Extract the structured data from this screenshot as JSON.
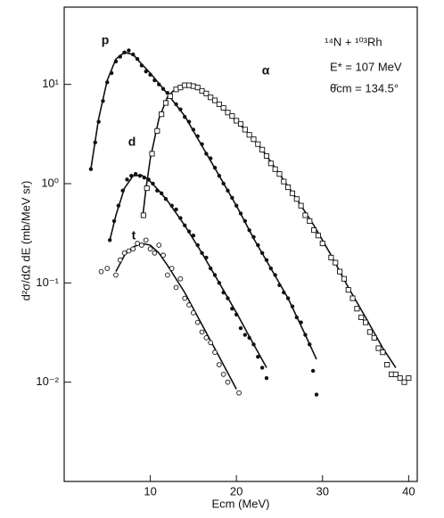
{
  "chart_data": {
    "type": "scatter",
    "annotations": [
      "¹⁴N + ¹⁰³Rh",
      "E* = 107 MeV",
      "θ̄cm = 134.5°"
    ],
    "x_label": "Ecm (MeV)",
    "y_label": "d²σ/dΩ dE (mb/MeV sr)",
    "log_y": true,
    "xlim": [
      0,
      41
    ],
    "ylim": [
      0.001,
      60
    ],
    "xticks": [
      10,
      20,
      30,
      40
    ],
    "yticks": [
      {
        "value": 10,
        "label": "10¹"
      },
      {
        "value": 1,
        "label": "10⁰"
      },
      {
        "value": 0.1,
        "label": "10⁻¹"
      },
      {
        "value": 0.01,
        "label": "10⁻²"
      }
    ],
    "series": [
      {
        "name": "p",
        "color": "#111111",
        "marker": "filled-circle",
        "x": [
          3.1,
          3.6,
          4.0,
          4.5,
          5.0,
          5.5,
          6.0,
          6.5,
          7.0,
          7.5,
          8.0,
          8.5,
          9.0,
          9.5,
          10,
          10.5,
          11,
          11.5,
          12,
          13,
          13.5,
          14,
          14.5,
          15,
          15.5,
          16,
          16.5,
          17,
          17.5,
          18,
          18.5,
          19,
          19.5,
          20,
          20.5,
          21,
          21.5,
          22,
          22.5,
          23,
          23.5,
          24,
          24.5,
          25,
          25.5,
          26,
          26.5,
          27,
          27.5,
          28,
          28.5,
          28.9,
          29.3
        ],
        "values": [
          1.4,
          2.6,
          4.2,
          6.8,
          10.5,
          13,
          17,
          19,
          21,
          22,
          20,
          18,
          15.5,
          13.5,
          12.5,
          11,
          10,
          9,
          8.2,
          6.3,
          5.6,
          4.7,
          4.2,
          3.5,
          3.0,
          2.5,
          2.0,
          1.8,
          1.45,
          1.2,
          1.0,
          0.85,
          0.72,
          0.6,
          0.5,
          0.42,
          0.34,
          0.29,
          0.24,
          0.2,
          0.17,
          0.14,
          0.12,
          0.095,
          0.08,
          0.07,
          0.058,
          0.045,
          0.04,
          0.03,
          0.024,
          0.013,
          0.0075
        ],
        "curve": {
          "x": [
            3.1,
            4,
            5,
            6,
            7,
            8,
            9,
            10,
            12,
            14,
            16,
            18,
            20,
            22,
            24,
            26,
            28,
            29.3
          ],
          "values": [
            1.4,
            4.5,
            11,
            18,
            21,
            20,
            16,
            13,
            8,
            4.8,
            2.4,
            1.2,
            0.6,
            0.28,
            0.14,
            0.07,
            0.03,
            0.017
          ]
        }
      },
      {
        "name": "α",
        "color": "#111111",
        "marker": "open-square",
        "x": [
          9.2,
          9.6,
          10.2,
          10.8,
          11.3,
          11.8,
          12.3,
          13,
          13.5,
          14,
          14.5,
          15,
          15.5,
          16,
          16.5,
          17,
          17.5,
          18,
          18.5,
          19,
          19.5,
          20,
          20.5,
          21,
          21.5,
          22,
          22.5,
          23,
          23.5,
          24,
          24.5,
          25,
          25.5,
          26,
          26.5,
          27,
          27.5,
          28,
          28.5,
          29,
          29.5,
          30,
          31,
          31.5,
          32,
          32.5,
          33,
          33.5,
          34,
          34.5,
          35,
          35.5,
          36,
          36.5,
          37,
          37.5,
          38,
          38.5,
          39,
          39.5,
          40
        ],
        "values": [
          0.48,
          0.9,
          2.0,
          3.4,
          5.0,
          6.5,
          7.6,
          8.9,
          9.3,
          9.8,
          9.8,
          9.6,
          9.3,
          8.6,
          8.1,
          7.4,
          6.9,
          6.3,
          5.8,
          5.2,
          4.8,
          4.3,
          4.0,
          3.5,
          3.1,
          2.8,
          2.5,
          2.2,
          1.9,
          1.6,
          1.4,
          1.25,
          1.05,
          0.92,
          0.8,
          0.7,
          0.6,
          0.48,
          0.42,
          0.34,
          0.3,
          0.25,
          0.18,
          0.16,
          0.13,
          0.11,
          0.085,
          0.07,
          0.055,
          0.045,
          0.04,
          0.032,
          0.028,
          0.022,
          0.02,
          0.015,
          0.012,
          0.012,
          0.011,
          0.01,
          0.011
        ],
        "curve": {
          "x": [
            9.1,
            9.5,
            10,
            11,
            12,
            13,
            14,
            15,
            17,
            19,
            21,
            23,
            25,
            27,
            29,
            31,
            33,
            35,
            37,
            38.5
          ],
          "values": [
            0.45,
            0.9,
            1.8,
            4.5,
            7.5,
            9.2,
            9.8,
            9.6,
            7.5,
            5.2,
            3.5,
            2.2,
            1.25,
            0.7,
            0.38,
            0.19,
            0.09,
            0.045,
            0.022,
            0.014
          ]
        }
      },
      {
        "name": "d",
        "color": "#111111",
        "marker": "filled-circle",
        "x": [
          5.3,
          5.8,
          6.3,
          6.8,
          7.3,
          7.8,
          8.3,
          8.8,
          9.3,
          9.8,
          10.3,
          10.8,
          11.3,
          11.8,
          12.5,
          13,
          13.5,
          14,
          14.5,
          15,
          15.5,
          16,
          16.5,
          17,
          17.5,
          18,
          18.5,
          19,
          19.5,
          20,
          20.5,
          21,
          21.5,
          22,
          22.5,
          23,
          23.5
        ],
        "values": [
          0.27,
          0.42,
          0.6,
          0.85,
          1.1,
          1.2,
          1.25,
          1.2,
          1.15,
          1.1,
          1.0,
          0.85,
          0.8,
          0.7,
          0.6,
          0.55,
          0.45,
          0.38,
          0.33,
          0.3,
          0.24,
          0.2,
          0.18,
          0.14,
          0.12,
          0.1,
          0.08,
          0.07,
          0.055,
          0.048,
          0.035,
          0.03,
          0.028,
          0.024,
          0.018,
          0.014,
          0.011
        ],
        "curve": {
          "x": [
            5.3,
            6,
            7,
            8,
            9,
            10,
            11,
            12,
            14,
            16,
            18,
            20,
            22,
            23.5
          ],
          "values": [
            0.27,
            0.48,
            0.9,
            1.2,
            1.22,
            1.05,
            0.85,
            0.67,
            0.38,
            0.2,
            0.1,
            0.05,
            0.024,
            0.014
          ]
        }
      },
      {
        "name": "t",
        "color": "#111111",
        "marker": "open-circle",
        "x": [
          4.3,
          5.0,
          6.0,
          6.5,
          7.0,
          7.5,
          8.0,
          8.5,
          9.0,
          9.5,
          10.0,
          10.5,
          11,
          11.5,
          12,
          12.5,
          13,
          13.5,
          14,
          14.5,
          15,
          15.5,
          16,
          16.5,
          17,
          17.5,
          18,
          18.5,
          19,
          20.3
        ],
        "values": [
          0.13,
          0.14,
          0.12,
          0.17,
          0.2,
          0.21,
          0.22,
          0.25,
          0.24,
          0.27,
          0.22,
          0.2,
          0.24,
          0.19,
          0.12,
          0.14,
          0.09,
          0.11,
          0.07,
          0.06,
          0.05,
          0.04,
          0.032,
          0.028,
          0.025,
          0.02,
          0.015,
          0.012,
          0.01,
          0.0078
        ],
        "curve": {
          "x": [
            6,
            7,
            8,
            9,
            10,
            11,
            12,
            14,
            16,
            18,
            20
          ],
          "values": [
            0.13,
            0.19,
            0.23,
            0.25,
            0.24,
            0.2,
            0.15,
            0.08,
            0.038,
            0.018,
            0.0085
          ]
        }
      }
    ]
  }
}
